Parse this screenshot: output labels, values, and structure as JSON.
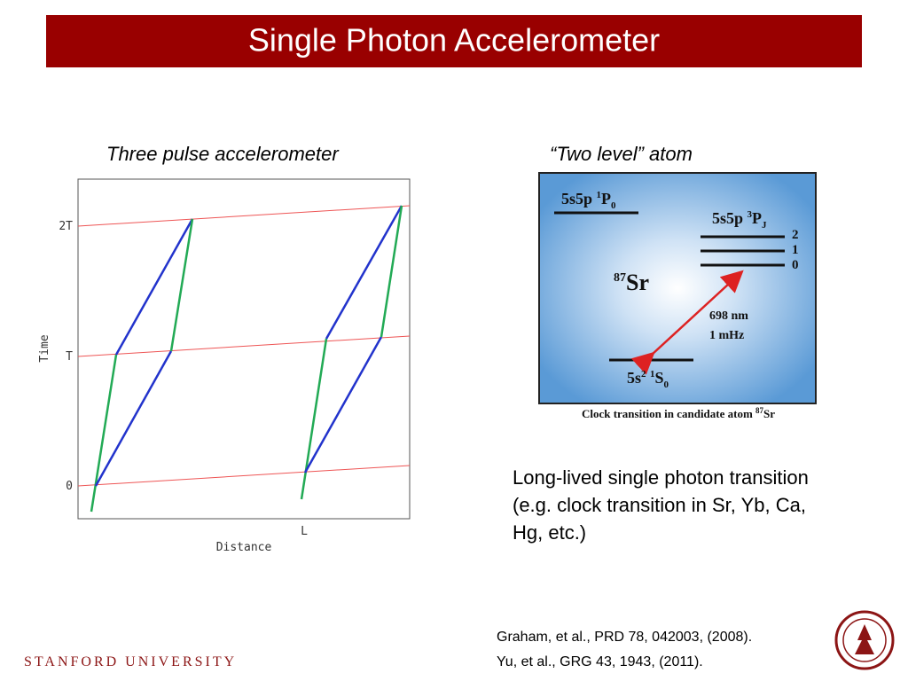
{
  "header": {
    "title": "Single Photon Accelerometer"
  },
  "left_panel": {
    "caption": "Three pulse accelerometer",
    "diagram": {
      "y_label": "Time",
      "x_label": "Distance",
      "y_ticks": [
        "2T",
        "T",
        "0"
      ],
      "x_ticks": [
        "L"
      ]
    }
  },
  "right_panel": {
    "caption": "“Two level” atom",
    "figure": {
      "upper_level": {
        "config": "5s5p ",
        "sup": "1",
        "term": "P",
        "sub": "0"
      },
      "clock_level": {
        "config": "5s5p ",
        "sup": "3",
        "term": "P",
        "sub": "J",
        "sublevels": [
          "2",
          "1",
          "0"
        ]
      },
      "ground_level": {
        "config": "5s",
        "config_sup": "2",
        "space": " ",
        "sup": "1",
        "term": "S",
        "sub": "0"
      },
      "atom": {
        "mass": "87",
        "symbol": "Sr"
      },
      "wavelength": "698 nm",
      "linewidth": "1 mHz",
      "caption": {
        "text": "Clock transition in candidate atom ",
        "sup": "87",
        "symbol": "Sr"
      }
    },
    "body": [
      "Long-lived single photon transition",
      "(e.g. clock transition in Sr, Yb, Ca,",
      "Hg, etc.)"
    ]
  },
  "references": [
    "Graham, et al., PRD 78, 042003, (2008).",
    "Yu, et al., GRG 43, 1943, (2011)."
  ],
  "footer": {
    "institution": "STANFORD UNIVERSITY"
  }
}
